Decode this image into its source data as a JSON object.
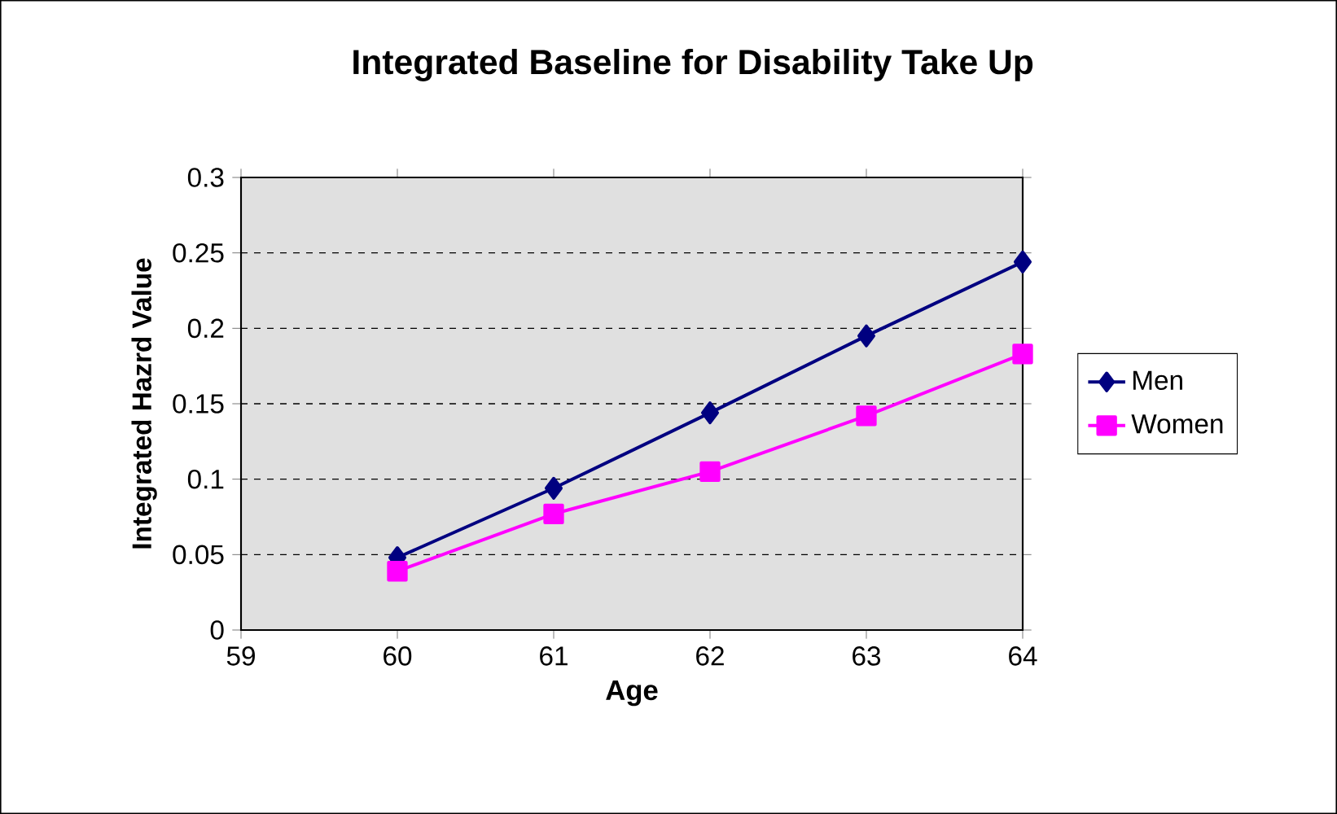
{
  "chart_data": {
    "type": "line",
    "title": "Integrated Baseline for Disability Take Up",
    "xlabel": "Age",
    "ylabel": "Integrated Hazrd Value",
    "x": [
      60,
      61,
      62,
      63,
      64
    ],
    "xlim": [
      59,
      64
    ],
    "xticks": [
      59,
      60,
      61,
      62,
      63,
      64
    ],
    "ylim": [
      0,
      0.3
    ],
    "yticks": [
      0,
      0.05,
      0.1,
      0.15,
      0.2,
      0.25,
      0.3
    ],
    "grid": "y",
    "legend": "right",
    "series": [
      {
        "name": "Men",
        "color": "#000080",
        "marker": "diamond",
        "values": [
          0.048,
          0.094,
          0.144,
          0.195,
          0.244
        ]
      },
      {
        "name": "Women",
        "color": "#ff00ff",
        "marker": "square",
        "values": [
          0.039,
          0.077,
          0.105,
          0.142,
          0.183
        ]
      }
    ]
  }
}
